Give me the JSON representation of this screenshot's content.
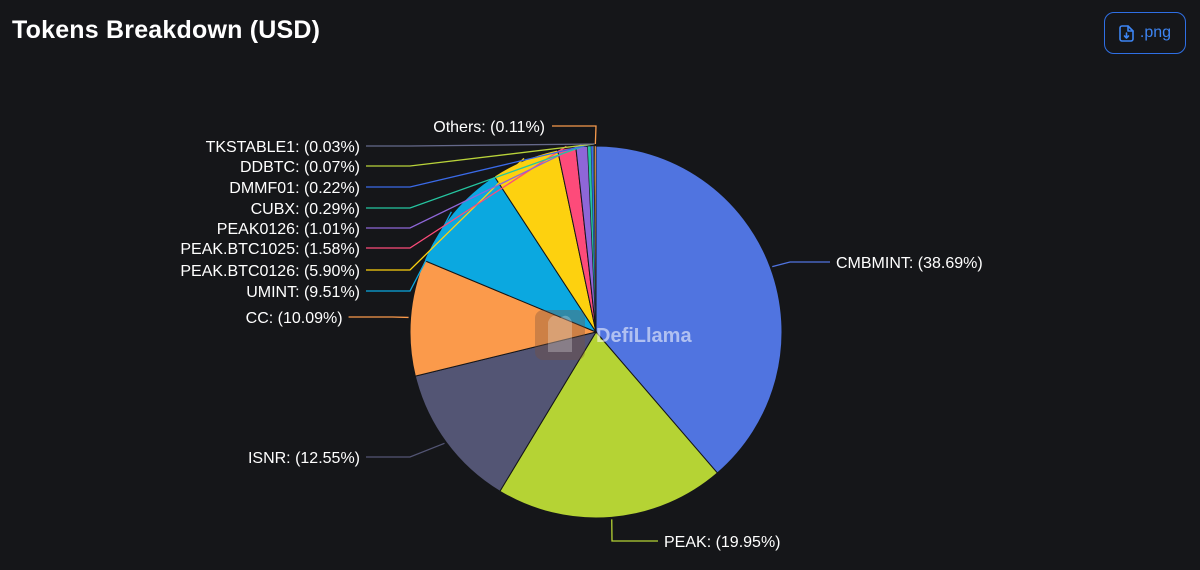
{
  "header": {
    "title": "Tokens Breakdown (USD)",
    "download_label": ".png"
  },
  "watermark": "DefiLlama",
  "chart_data": {
    "type": "pie",
    "title": "Tokens Breakdown (USD)",
    "slices": [
      {
        "name": "CMBMINT",
        "value": 38.69,
        "label": "CMBMINT: (38.69%)",
        "color": "#5074e0"
      },
      {
        "name": "PEAK",
        "value": 19.95,
        "label": "PEAK: (19.95%)",
        "color": "#b5d334"
      },
      {
        "name": "ISNR",
        "value": 12.55,
        "label": "ISNR: (12.55%)",
        "color": "#535574"
      },
      {
        "name": "CC",
        "value": 10.09,
        "label": "CC: (10.09%)",
        "color": "#fb9a4b"
      },
      {
        "name": "UMINT",
        "value": 9.51,
        "label": "UMINT: (9.51%)",
        "color": "#0ba8e0"
      },
      {
        "name": "PEAK.BTC0126",
        "value": 5.9,
        "label": "PEAK.BTC0126: (5.90%)",
        "color": "#fdd10f"
      },
      {
        "name": "PEAK.BTC1025",
        "value": 1.58,
        "label": "PEAK.BTC1025: (1.58%)",
        "color": "#fd4b7a"
      },
      {
        "name": "PEAK0126",
        "value": 1.01,
        "label": "PEAK0126: (1.01%)",
        "color": "#8e66d8"
      },
      {
        "name": "CUBX",
        "value": 0.29,
        "label": "CUBX: (0.29%)",
        "color": "#25c5a0"
      },
      {
        "name": "DMMF01",
        "value": 0.22,
        "label": "DMMF01: (0.22%)",
        "color": "#3a6ae8"
      },
      {
        "name": "DDBTC",
        "value": 0.07,
        "label": "DDBTC: (0.07%)",
        "color": "#b9d33a"
      },
      {
        "name": "TKSTABLE1",
        "value": 0.03,
        "label": "TKSTABLE1: (0.03%)",
        "color": "#65698a"
      },
      {
        "name": "Others",
        "value": 0.11,
        "label": "Others: (0.11%)",
        "color": "#f89a4c"
      }
    ]
  }
}
